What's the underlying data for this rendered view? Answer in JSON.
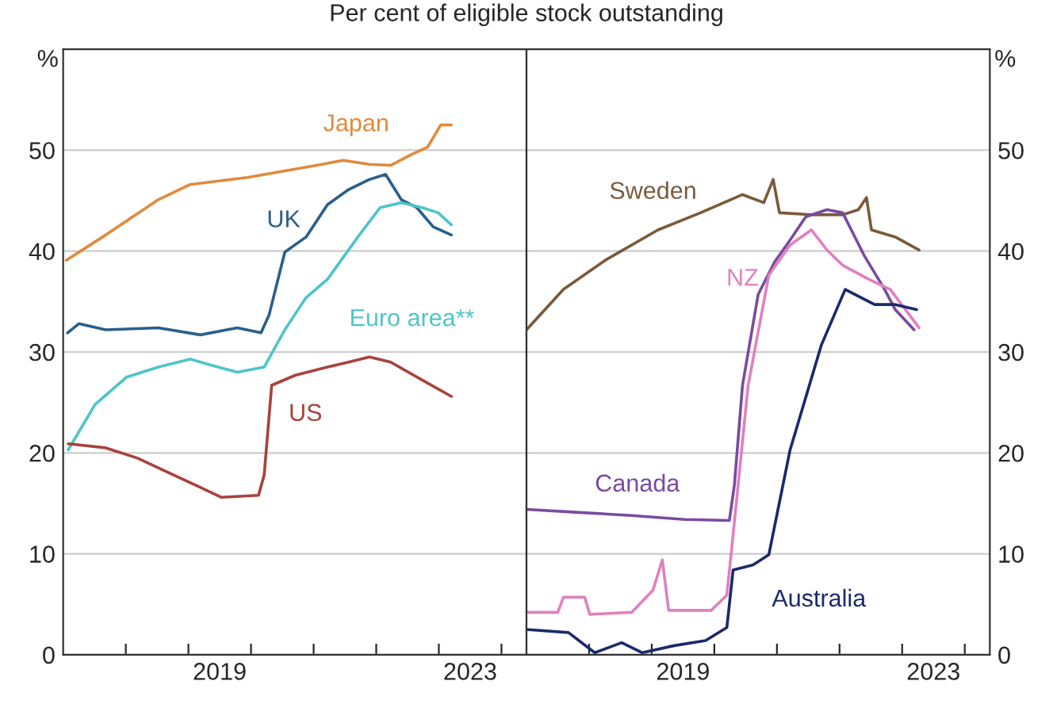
{
  "chart_data": [
    {
      "type": "line",
      "title": "Per cent of eligible stock outstanding",
      "ylabel": "%",
      "xlim": [
        2017,
        2024.4
      ],
      "xticks": [
        {
          "value": 2018,
          "label": null
        },
        {
          "value": 2019,
          "label": null
        },
        {
          "value": 2019.5,
          "label": "2019"
        },
        {
          "value": 2020,
          "label": null
        },
        {
          "value": 2021,
          "label": null
        },
        {
          "value": 2022,
          "label": null
        },
        {
          "value": 2023,
          "label": null
        },
        {
          "value": 2023.5,
          "label": "2023"
        },
        {
          "value": 2024,
          "label": null
        }
      ],
      "ylim": [
        0,
        60
      ],
      "yticks": [
        0,
        10,
        20,
        30,
        40,
        50
      ],
      "grid": "y",
      "legend": false,
      "series": [
        {
          "name": "Japan",
          "color": "#e08a3c",
          "x": [
            2017.05,
            2017.68,
            2018.52,
            2019.03,
            2019.95,
            2021.05,
            2021.47,
            2021.89,
            2022.23,
            2022.57,
            2022.82,
            2023.03,
            2023.2
          ],
          "values": [
            39.1,
            41.6,
            45.1,
            46.6,
            47.3,
            48.5,
            49.0,
            48.6,
            48.5,
            49.6,
            50.3,
            52.5,
            52.5
          ]
        },
        {
          "name": "UK",
          "color": "#2a5f8a",
          "x": [
            2017.07,
            2017.25,
            2017.68,
            2018.52,
            2019.19,
            2019.78,
            2020.16,
            2020.29,
            2020.54,
            2020.88,
            2021.22,
            2021.56,
            2021.89,
            2022.15,
            2022.4,
            2022.65,
            2022.91,
            2023.2
          ],
          "values": [
            31.9,
            32.8,
            32.2,
            32.4,
            31.7,
            32.4,
            31.9,
            33.7,
            39.9,
            41.4,
            44.6,
            46.1,
            47.1,
            47.6,
            45.1,
            44.3,
            42.4,
            41.6
          ]
        },
        {
          "name": "Euro area**",
          "color": "#4ec5c8",
          "x": [
            2017.08,
            2017.51,
            2018.01,
            2018.52,
            2019.03,
            2019.36,
            2019.78,
            2020.21,
            2020.54,
            2020.88,
            2021.22,
            2021.73,
            2022.06,
            2022.4,
            2022.74,
            2022.99,
            2023.2
          ],
          "values": [
            20.3,
            24.8,
            27.5,
            28.5,
            29.3,
            28.7,
            28.0,
            28.5,
            32.2,
            35.4,
            37.2,
            41.6,
            44.3,
            44.8,
            44.3,
            43.8,
            42.6
          ]
        },
        {
          "name": "US",
          "color": "#a8423c",
          "x": [
            2017.08,
            2017.68,
            2018.18,
            2018.77,
            2019.53,
            2020.12,
            2020.21,
            2020.33,
            2020.71,
            2021.22,
            2021.56,
            2021.89,
            2022.23,
            2022.74,
            2023.2
          ],
          "values": [
            20.9,
            20.5,
            19.5,
            17.8,
            15.6,
            15.8,
            17.8,
            26.7,
            27.7,
            28.5,
            29.0,
            29.5,
            29.0,
            27.2,
            25.6
          ]
        }
      ]
    },
    {
      "type": "line",
      "ylabel": "%",
      "xlim": [
        2017,
        2024.4
      ],
      "xticks": [
        {
          "value": 2018,
          "label": null
        },
        {
          "value": 2019,
          "label": null
        },
        {
          "value": 2019.5,
          "label": "2019"
        },
        {
          "value": 2020,
          "label": null
        },
        {
          "value": 2021,
          "label": null
        },
        {
          "value": 2022,
          "label": null
        },
        {
          "value": 2023,
          "label": null
        },
        {
          "value": 2023.5,
          "label": "2023"
        },
        {
          "value": 2024,
          "label": null
        }
      ],
      "ylim": [
        0,
        60
      ],
      "yticks": [
        0,
        10,
        20,
        30,
        40,
        50
      ],
      "grid": "y",
      "legend": false,
      "series": [
        {
          "name": "Sweden",
          "color": "#7a5a3a",
          "x": [
            2017.0,
            2017.59,
            2018.26,
            2019.1,
            2019.78,
            2020.45,
            2020.79,
            2020.94,
            2021.04,
            2021.55,
            2022.05,
            2022.3,
            2022.43,
            2022.51,
            2022.89,
            2023.27
          ],
          "values": [
            32.2,
            36.2,
            39.1,
            42.1,
            43.8,
            45.6,
            44.8,
            47.1,
            43.8,
            43.6,
            43.6,
            44.1,
            45.3,
            42.1,
            41.4,
            40.1
          ]
        },
        {
          "name": "Canada",
          "color": "#7a4aa0",
          "x": [
            2017.0,
            2017.84,
            2018.68,
            2019.53,
            2020.24,
            2020.32,
            2020.45,
            2020.7,
            2020.96,
            2021.21,
            2021.46,
            2021.8,
            2022.05,
            2022.39,
            2022.72,
            2022.89,
            2023.19
          ],
          "values": [
            14.4,
            14.1,
            13.8,
            13.4,
            13.3,
            16.8,
            26.7,
            35.7,
            38.9,
            41.1,
            43.4,
            44.1,
            43.8,
            39.6,
            36.2,
            34.2,
            32.2
          ]
        },
        {
          "name": "NZ",
          "color": "#e080c0",
          "x": [
            2017.0,
            2017.5,
            2017.59,
            2017.93,
            2018.01,
            2018.68,
            2019.02,
            2019.17,
            2019.27,
            2019.95,
            2020.2,
            2020.3,
            2020.54,
            2020.87,
            2021.21,
            2021.55,
            2021.8,
            2022.05,
            2022.47,
            2022.81,
            2023.27
          ],
          "values": [
            4.2,
            4.2,
            5.7,
            5.7,
            4.0,
            4.2,
            6.4,
            9.4,
            4.4,
            4.4,
            5.9,
            11.9,
            26.7,
            37.6,
            40.6,
            42.1,
            40.1,
            38.6,
            37.2,
            36.2,
            32.4
          ]
        },
        {
          "name": "Australia",
          "color": "#1a2a6a",
          "x": [
            2017.0,
            2017.67,
            2018.09,
            2018.52,
            2018.85,
            2019.36,
            2019.86,
            2020.2,
            2020.3,
            2020.62,
            2020.87,
            2021.21,
            2021.71,
            2022.09,
            2022.56,
            2022.89,
            2023.23
          ],
          "values": [
            2.5,
            2.2,
            0.2,
            1.2,
            0.2,
            0.9,
            1.4,
            2.7,
            8.4,
            8.9,
            9.9,
            20.3,
            30.7,
            36.2,
            34.7,
            34.7,
            34.2
          ]
        }
      ]
    }
  ]
}
